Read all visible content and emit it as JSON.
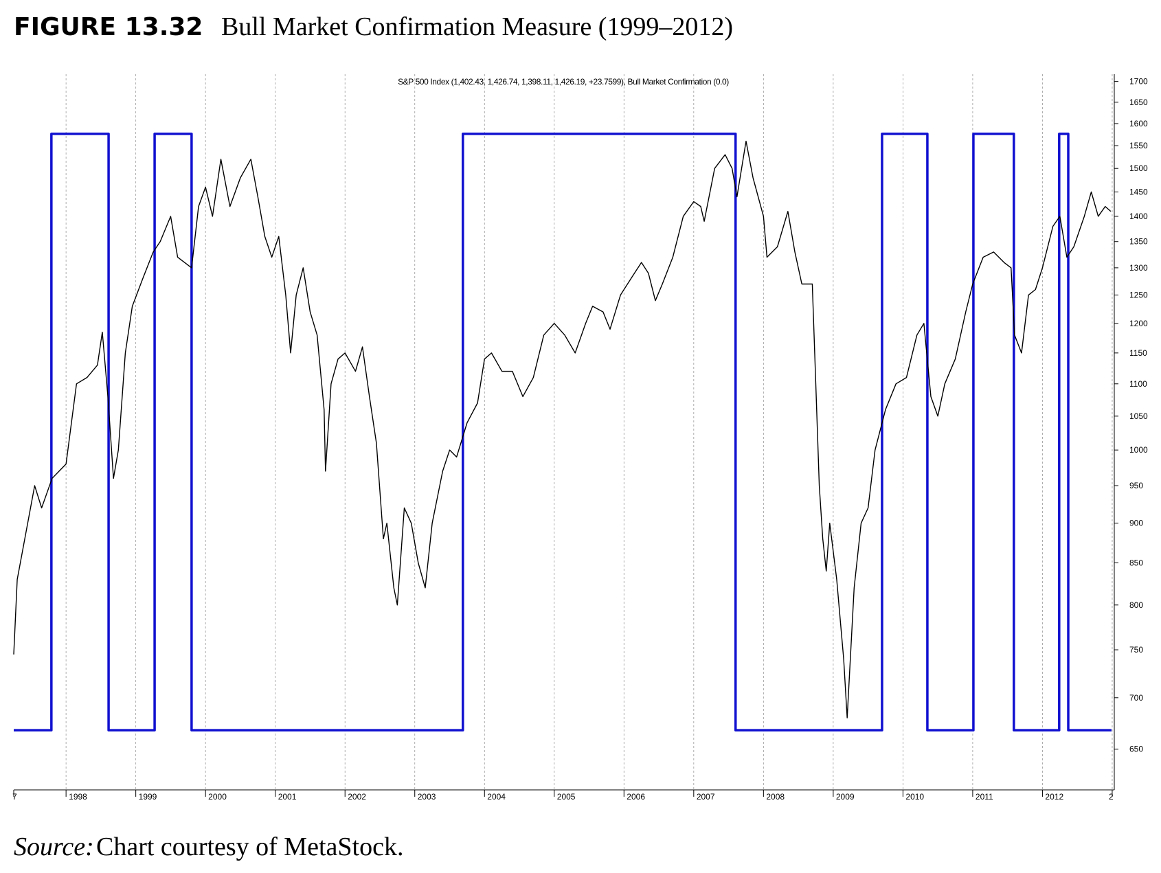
{
  "chart_data": {
    "type": "line",
    "title_label": "FIGURE 13.32",
    "title": "Bull Market Confirmation Measure (1999–2012)",
    "source_label": "Source:",
    "source": "Chart courtesy of MetaStock.",
    "xlim": [
      1997.25,
      2013.03
    ],
    "xticks": [
      {
        "value": 1997,
        "label": "7"
      },
      1998,
      1999,
      2000,
      2001,
      2002,
      2003,
      2004,
      2005,
      2006,
      2007,
      2008,
      2009,
      2010,
      2011,
      2012,
      {
        "value": 2013,
        "label": "2"
      }
    ],
    "yscale": "log",
    "ylim": [
      613,
      1718
    ],
    "yticks": [
      650,
      700,
      750,
      800,
      850,
      900,
      950,
      1000,
      1050,
      1100,
      1150,
      1200,
      1250,
      1300,
      1350,
      1400,
      1450,
      1500,
      1550,
      1600,
      1650,
      1700
    ],
    "y2lim": [
      -0.1,
      1.1
    ],
    "grid": true,
    "series": [
      {
        "name": "S&P 500 Index",
        "legend_label": "(1,402.43, 1,426.74, 1,398.11, 1,426.19, +23.7599),",
        "color": "#000000",
        "x": [
          1997.25,
          1997.3,
          1997.45,
          1997.55,
          1997.65,
          1997.8,
          1997.9,
          1998.0,
          1998.15,
          1998.3,
          1998.45,
          1998.52,
          1998.6,
          1998.68,
          1998.75,
          1998.85,
          1998.95,
          1999.1,
          1999.25,
          1999.35,
          1999.5,
          1999.6,
          1999.8,
          1999.9,
          2000.0,
          2000.1,
          2000.22,
          2000.35,
          2000.5,
          2000.65,
          2000.75,
          2000.85,
          2000.95,
          2001.05,
          2001.15,
          2001.22,
          2001.3,
          2001.4,
          2001.5,
          2001.6,
          2001.7,
          2001.72,
          2001.8,
          2001.9,
          2002.0,
          2002.15,
          2002.25,
          2002.35,
          2002.45,
          2002.55,
          2002.6,
          2002.7,
          2002.75,
          2002.85,
          2002.95,
          2003.05,
          2003.15,
          2003.25,
          2003.4,
          2003.5,
          2003.6,
          2003.75,
          2003.9,
          2004.0,
          2004.1,
          2004.25,
          2004.4,
          2004.55,
          2004.7,
          2004.85,
          2005.0,
          2005.15,
          2005.3,
          2005.45,
          2005.55,
          2005.7,
          2005.8,
          2005.95,
          2006.1,
          2006.25,
          2006.35,
          2006.45,
          2006.55,
          2006.7,
          2006.85,
          2007.0,
          2007.1,
          2007.15,
          2007.3,
          2007.45,
          2007.55,
          2007.62,
          2007.75,
          2007.85,
          2008.0,
          2008.05,
          2008.2,
          2008.35,
          2008.45,
          2008.55,
          2008.7,
          2008.75,
          2008.8,
          2008.85,
          2008.9,
          2008.95,
          2009.05,
          2009.15,
          2009.2,
          2009.3,
          2009.4,
          2009.5,
          2009.6,
          2009.75,
          2009.9,
          2010.05,
          2010.2,
          2010.3,
          2010.4,
          2010.5,
          2010.6,
          2010.75,
          2010.9,
          2011.0,
          2011.15,
          2011.3,
          2011.45,
          2011.55,
          2011.6,
          2011.7,
          2011.8,
          2011.9,
          2012.0,
          2012.15,
          2012.25,
          2012.35,
          2012.45,
          2012.6,
          2012.7,
          2012.8,
          2012.9,
          2012.98
        ],
        "values": [
          745,
          830,
          900,
          950,
          920,
          960,
          970,
          980,
          1100,
          1110,
          1130,
          1185,
          1080,
          960,
          1000,
          1150,
          1230,
          1280,
          1330,
          1350,
          1400,
          1320,
          1300,
          1420,
          1460,
          1400,
          1520,
          1420,
          1480,
          1520,
          1440,
          1360,
          1320,
          1360,
          1250,
          1150,
          1250,
          1300,
          1220,
          1180,
          1060,
          970,
          1100,
          1140,
          1150,
          1120,
          1160,
          1080,
          1010,
          880,
          900,
          820,
          800,
          920,
          900,
          850,
          820,
          900,
          970,
          1000,
          990,
          1040,
          1070,
          1140,
          1150,
          1120,
          1120,
          1080,
          1110,
          1180,
          1200,
          1180,
          1150,
          1200,
          1230,
          1220,
          1190,
          1250,
          1280,
          1310,
          1290,
          1240,
          1270,
          1320,
          1400,
          1430,
          1420,
          1390,
          1500,
          1530,
          1500,
          1440,
          1560,
          1480,
          1400,
          1320,
          1340,
          1410,
          1330,
          1270,
          1270,
          1100,
          950,
          880,
          840,
          900,
          830,
          740,
          680,
          820,
          900,
          920,
          1000,
          1060,
          1100,
          1110,
          1180,
          1200,
          1080,
          1050,
          1100,
          1140,
          1220,
          1270,
          1320,
          1330,
          1310,
          1300,
          1180,
          1150,
          1250,
          1260,
          1300,
          1380,
          1400,
          1320,
          1340,
          1400,
          1450,
          1400,
          1420,
          1410
        ]
      },
      {
        "name": "Bull Market Confirmation",
        "legend_label": "(0.0)",
        "color": "#1010d0",
        "axis": "y2",
        "x": [
          1997.25,
          1997.79,
          1997.79,
          1998.61,
          1998.61,
          1999.27,
          1999.27,
          1999.8,
          1999.8,
          2003.69,
          2003.69,
          2007.6,
          2007.6,
          2009.7,
          2009.7,
          2010.35,
          2010.35,
          2011.01,
          2011.01,
          2011.59,
          2011.59,
          2012.24,
          2012.24,
          2012.37,
          2012.37,
          2012.99
        ],
        "values": [
          0,
          0,
          1,
          1,
          0,
          0,
          1,
          1,
          0,
          0,
          1,
          1,
          0,
          0,
          1,
          1,
          0,
          0,
          1,
          1,
          0,
          0,
          1,
          1,
          0,
          0
        ]
      }
    ]
  }
}
